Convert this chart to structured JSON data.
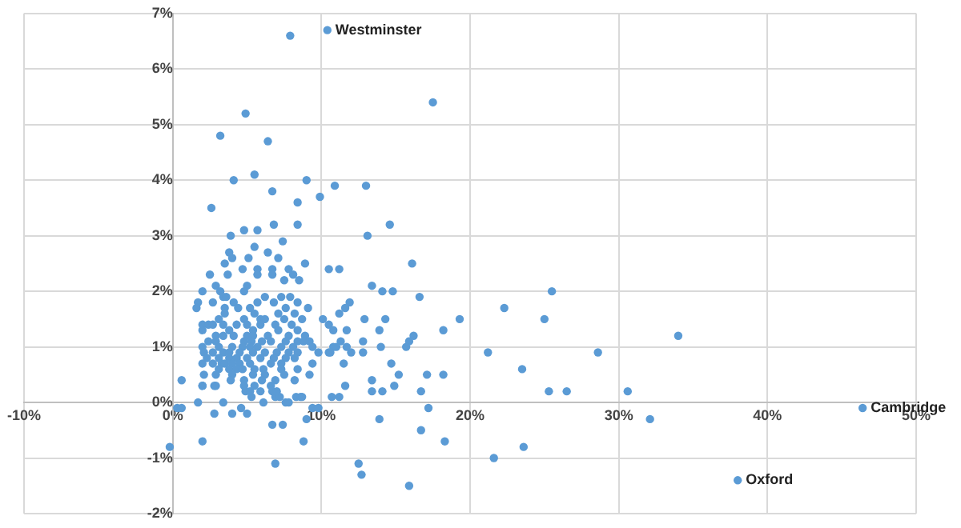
{
  "chart_data": {
    "type": "scatter",
    "color": "#5b9bd5",
    "marker": "circle",
    "grid": true,
    "legend": false,
    "xlim": [
      -10,
      50
    ],
    "ylim": [
      -2,
      7
    ],
    "xticks": [
      {
        "value": -10,
        "label": "-10%"
      },
      {
        "value": 0,
        "label": "0%"
      },
      {
        "value": 10,
        "label": "10%"
      },
      {
        "value": 20,
        "label": "20%"
      },
      {
        "value": 30,
        "label": "30%"
      },
      {
        "value": 40,
        "label": "40%"
      },
      {
        "value": 50,
        "label": "50%"
      }
    ],
    "yticks": [
      {
        "value": -2,
        "label": "-2%"
      },
      {
        "value": -1,
        "label": "-1%"
      },
      {
        "value": 0,
        "label": "0%"
      },
      {
        "value": 1,
        "label": "1%"
      },
      {
        "value": 2,
        "label": "2%"
      },
      {
        "value": 3,
        "label": "3%"
      },
      {
        "value": 4,
        "label": "4%"
      },
      {
        "value": 5,
        "label": "5%"
      },
      {
        "value": 6,
        "label": "6%"
      },
      {
        "value": 7,
        "label": "7%"
      }
    ],
    "annotations": [
      {
        "text": "Westminster",
        "x": 10.4,
        "y": 6.7
      },
      {
        "text": "Oxford",
        "x": 38.0,
        "y": -1.4
      },
      {
        "text": "Cambridge",
        "x": 46.4,
        "y": -0.1
      }
    ],
    "x": [
      25.5,
      25.0,
      34.0,
      28.6,
      23.5,
      25.3,
      26.5,
      30.6,
      32.1,
      23.6,
      38.0,
      46.4,
      7.9,
      10.4,
      17.5,
      4.9,
      3.2,
      6.4,
      4.1,
      5.5,
      9.0,
      6.7,
      10.9,
      13.0,
      9.9,
      8.4,
      2.6,
      14.6,
      13.1,
      16.1,
      11.2,
      10.5,
      13.4,
      14.1,
      14.8,
      16.6,
      11.9,
      11.6,
      11.2,
      22.3,
      12.9,
      14.3,
      19.3,
      10.5,
      11.7,
      13.9,
      18.2,
      16.2,
      15.9,
      12.8,
      11.3,
      10.8,
      11.7,
      14.0,
      15.7,
      10.5,
      12.0,
      12.8,
      21.2,
      11.5,
      14.7,
      15.2,
      17.1,
      18.2,
      11.6,
      13.4,
      14.9,
      13.4,
      14.1,
      16.7,
      10.7,
      11.2,
      17.2,
      -0.2,
      0.3,
      0.6,
      1.7,
      2.0,
      2.0,
      2.8,
      2.8,
      3.4,
      4.0,
      4.6,
      5.0,
      4.9,
      5.3,
      5.2,
      5.5,
      6.1,
      6.7,
      6.7,
      6.9,
      7.2,
      6.9,
      7.4,
      7.6,
      7.8,
      8.3,
      8.6,
      8.7,
      8.8,
      9.0,
      9.4,
      9.8,
      12.5,
      12.7,
      13.9,
      15.9,
      16.7,
      18.3,
      21.6,
      3.9,
      4.8,
      5.7,
      6.8,
      8.4,
      7.4,
      5.5,
      3.8,
      4.0,
      5.1,
      6.4,
      7.1,
      8.9,
      3.5,
      4.7,
      5.7,
      5.7,
      6.7,
      6.7,
      7.8,
      2.5,
      3.7,
      8.1,
      7.5,
      8.5,
      2.9,
      5.0,
      2.0,
      3.2,
      4.8,
      3.4,
      3.6,
      6.2,
      7.3,
      7.9,
      1.7,
      2.7,
      4.1,
      5.7,
      6.8,
      8.4,
      1.6,
      3.5,
      4.4,
      5.2,
      7.6,
      9.1,
      3.5,
      5.5,
      7.1,
      8.2,
      3.1,
      4.8,
      5.9,
      6.2,
      7.5,
      8.7,
      10.1,
      2.0,
      2.4,
      2.7,
      3.4,
      4.3,
      5.0,
      5.9,
      6.9,
      8.0,
      2.0,
      3.8,
      5.4,
      7.1,
      8.4,
      10.8,
      2.9,
      3.4,
      4.1,
      5.0,
      5.4,
      6.4,
      7.8,
      8.9,
      2.4,
      2.9,
      4.8,
      5.3,
      6.0,
      6.6,
      7.6,
      8.4,
      8.8,
      9.2,
      2.0,
      3.1,
      4.0,
      4.7,
      5.2,
      5.7,
      7.3,
      8.1,
      9.4,
      11.0,
      2.1,
      2.7,
      3.4,
      3.8,
      4.5,
      5.4,
      6.2,
      7.0,
      7.8,
      8.4,
      9.8,
      10.6,
      2.3,
      3.1,
      3.8,
      4.3,
      5.0,
      5.9,
      6.8,
      7.6,
      8.2,
      2.0,
      2.7,
      3.3,
      3.5,
      4.0,
      4.5,
      5.2,
      6.6,
      7.3,
      9.4,
      3.1,
      3.8,
      4.3,
      4.7,
      5.5,
      6.1,
      7.3,
      8.4,
      2.1,
      2.9,
      4.0,
      5.4,
      6.2,
      7.5,
      9.2,
      0.6,
      3.9,
      4.8,
      6.0,
      6.9,
      8.2,
      2.0,
      2.9,
      4.8,
      6.6,
      5.9,
      7.0
    ],
    "values": [
      2.0,
      1.5,
      1.2,
      0.9,
      0.6,
      0.2,
      0.2,
      0.2,
      -0.3,
      -0.8,
      -1.4,
      -0.1,
      6.6,
      6.7,
      5.4,
      5.2,
      4.8,
      4.7,
      4.0,
      4.1,
      4.0,
      3.8,
      3.9,
      3.9,
      3.7,
      3.6,
      3.5,
      3.2,
      3.0,
      2.5,
      2.4,
      2.4,
      2.1,
      2.0,
      2.0,
      1.9,
      1.8,
      1.7,
      1.6,
      1.7,
      1.5,
      1.5,
      1.5,
      1.4,
      1.3,
      1.3,
      1.3,
      1.2,
      1.1,
      1.1,
      1.1,
      1.0,
      1.0,
      1.0,
      1.0,
      0.9,
      0.9,
      0.9,
      0.9,
      0.7,
      0.7,
      0.5,
      0.5,
      0.5,
      0.3,
      0.4,
      0.3,
      0.2,
      0.2,
      0.2,
      0.1,
      0.1,
      -0.1,
      -0.8,
      -0.1,
      -0.1,
      0.0,
      0.3,
      -0.7,
      0.3,
      -0.2,
      0.0,
      -0.2,
      -0.1,
      -0.2,
      0.2,
      0.1,
      0.2,
      0.3,
      0.0,
      -0.4,
      0.2,
      0.1,
      0.1,
      -1.1,
      -0.4,
      0.0,
      0.0,
      0.1,
      0.1,
      0.1,
      -0.7,
      -0.3,
      -0.1,
      -0.1,
      -1.1,
      -1.3,
      -0.3,
      -1.5,
      -0.5,
      -0.7,
      -1.0,
      3.0,
      3.1,
      3.1,
      3.2,
      3.2,
      2.9,
      2.8,
      2.7,
      2.6,
      2.6,
      2.7,
      2.6,
      2.5,
      2.5,
      2.4,
      2.4,
      2.3,
      2.4,
      2.3,
      2.4,
      2.3,
      2.3,
      2.3,
      2.2,
      2.2,
      2.1,
      2.1,
      2.0,
      2.0,
      2.0,
      1.9,
      1.9,
      1.9,
      1.9,
      1.9,
      1.8,
      1.8,
      1.8,
      1.8,
      1.8,
      1.8,
      1.7,
      1.7,
      1.7,
      1.7,
      1.7,
      1.7,
      1.6,
      1.6,
      1.6,
      1.6,
      1.5,
      1.5,
      1.5,
      1.5,
      1.5,
      1.5,
      1.5,
      1.4,
      1.4,
      1.4,
      1.4,
      1.4,
      1.4,
      1.4,
      1.4,
      1.4,
      1.3,
      1.3,
      1.3,
      1.3,
      1.3,
      1.3,
      1.2,
      1.2,
      1.2,
      1.2,
      1.2,
      1.2,
      1.2,
      1.2,
      1.1,
      1.1,
      1.1,
      1.1,
      1.1,
      1.1,
      1.1,
      1.1,
      1.1,
      1.1,
      1.0,
      1.0,
      1.0,
      1.0,
      1.0,
      1.0,
      1.0,
      1.0,
      1.0,
      1.0,
      0.9,
      0.9,
      0.9,
      0.9,
      0.9,
      0.9,
      0.9,
      0.9,
      0.9,
      0.9,
      0.9,
      0.9,
      0.8,
      0.8,
      0.8,
      0.8,
      0.8,
      0.8,
      0.8,
      0.8,
      0.8,
      0.7,
      0.7,
      0.7,
      0.7,
      0.7,
      0.7,
      0.7,
      0.7,
      0.7,
      0.7,
      0.6,
      0.6,
      0.6,
      0.6,
      0.6,
      0.6,
      0.6,
      0.6,
      0.5,
      0.5,
      0.5,
      0.5,
      0.5,
      0.5,
      0.5,
      0.4,
      0.4,
      0.4,
      0.4,
      0.4,
      0.4,
      0.3,
      0.3,
      0.3,
      0.3,
      0.2,
      0.2
    ]
  }
}
